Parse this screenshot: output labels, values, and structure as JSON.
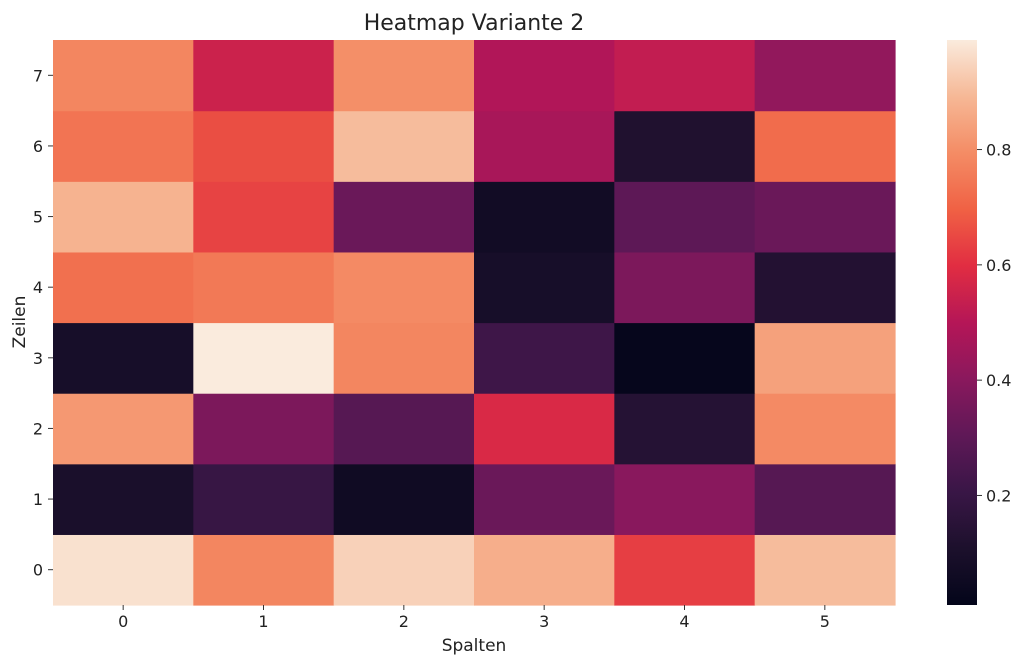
{
  "chart_data": {
    "type": "heatmap",
    "title": "Heatmap Variante 2",
    "xlabel": "Spalten",
    "ylabel": "Zeilen",
    "x_categories": [
      "0",
      "1",
      "2",
      "3",
      "4",
      "5"
    ],
    "y_categories": [
      "0",
      "1",
      "2",
      "3",
      "4",
      "5",
      "6",
      "7"
    ],
    "values": [
      [
        0.97,
        0.78,
        0.94,
        0.87,
        0.63,
        0.9
      ],
      [
        0.1,
        0.2,
        0.06,
        0.33,
        0.4,
        0.28
      ],
      [
        0.82,
        0.37,
        0.28,
        0.58,
        0.14,
        0.79
      ],
      [
        0.09,
        0.99,
        0.78,
        0.22,
        0.02,
        0.84
      ],
      [
        0.73,
        0.75,
        0.79,
        0.09,
        0.37,
        0.13
      ],
      [
        0.88,
        0.64,
        0.33,
        0.07,
        0.3,
        0.33
      ],
      [
        0.74,
        0.66,
        0.9,
        0.47,
        0.12,
        0.72
      ],
      [
        0.78,
        0.55,
        0.8,
        0.49,
        0.53,
        0.42
      ]
    ],
    "colorbar": {
      "colormap": "rocket",
      "range": [
        0.01,
        0.99
      ],
      "ticks": [
        0.2,
        0.4,
        0.6,
        0.8
      ],
      "tick_labels": [
        "0.2",
        "0.4",
        "0.6",
        "0.8"
      ]
    }
  }
}
